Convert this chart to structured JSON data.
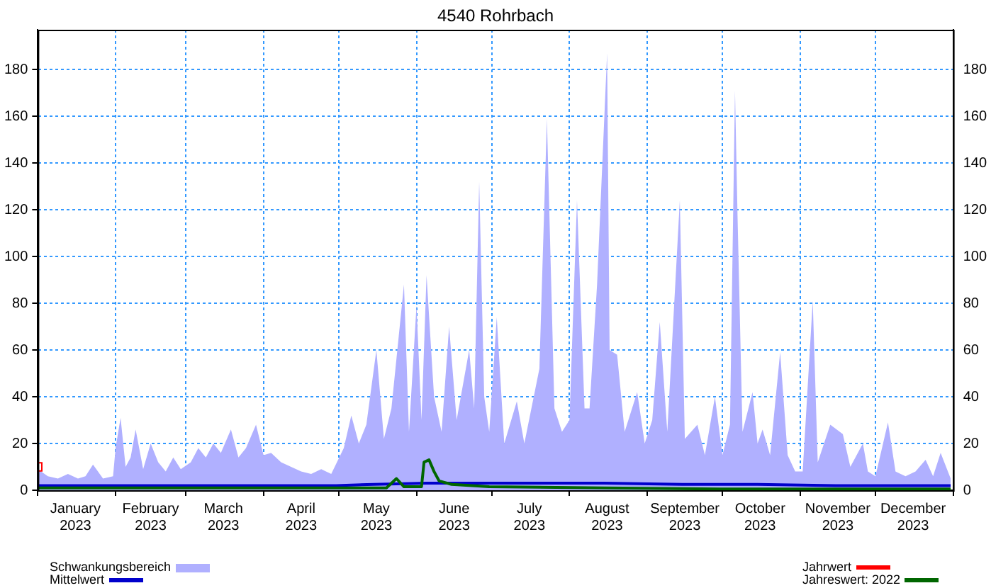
{
  "chart_data": {
    "type": "area",
    "title": "4540 Rohrbach",
    "xlim": [
      "2023-01-01",
      "2024-01-01"
    ],
    "xticks": [
      {
        "value": "2023-01-01",
        "label": null
      },
      {
        "value": "2023-01-16",
        "label": "January 2023"
      },
      {
        "value": "2023-02-01",
        "label": null
      },
      {
        "value": "2023-02-15",
        "label": "February 2023"
      },
      {
        "value": "2023-03-01",
        "label": null
      },
      {
        "value": "2023-03-16",
        "label": "March 2023"
      },
      {
        "value": "2023-04-01",
        "label": null
      },
      {
        "value": "2023-04-16",
        "label": "April 2023"
      },
      {
        "value": "2023-05-01",
        "label": null
      },
      {
        "value": "2023-05-16",
        "label": "May 2023"
      },
      {
        "value": "2023-06-01",
        "label": null
      },
      {
        "value": "2023-06-16",
        "label": "June 2023"
      },
      {
        "value": "2023-07-01",
        "label": null
      },
      {
        "value": "2023-07-16",
        "label": "July 2023"
      },
      {
        "value": "2023-08-01",
        "label": null
      },
      {
        "value": "2023-08-16",
        "label": "August 2023"
      },
      {
        "value": "2023-09-01",
        "label": null
      },
      {
        "value": "2023-09-16",
        "label": "September 2023"
      },
      {
        "value": "2023-10-01",
        "label": null
      },
      {
        "value": "2023-10-16",
        "label": "October 2023"
      },
      {
        "value": "2023-11-01",
        "label": null
      },
      {
        "value": "2023-11-16",
        "label": "November 2023"
      },
      {
        "value": "2023-12-01",
        "label": null
      },
      {
        "value": "2023-12-16",
        "label": "December 2023"
      },
      {
        "value": "2024-01-01",
        "label": null
      }
    ],
    "ylim": [
      0,
      197
    ],
    "yticks": [
      0,
      20,
      40,
      60,
      80,
      100,
      120,
      140,
      160,
      180
    ],
    "y2lim": [
      0,
      197
    ],
    "y2ticks": [
      0,
      20,
      40,
      60,
      80,
      100,
      120,
      140,
      160,
      180
    ],
    "grid": true,
    "legend": "bottom",
    "series": [
      {
        "name": "Schwankungsbereich",
        "color": "#b0b0ff",
        "x": [
          "2023-01-01",
          "2023-01-05",
          "2023-01-09",
          "2023-01-13",
          "2023-01-17",
          "2023-01-20",
          "2023-01-23",
          "2023-01-27",
          "2023-01-31",
          "2023-02-01",
          "2023-02-03",
          "2023-02-05",
          "2023-02-07",
          "2023-02-09",
          "2023-02-12",
          "2023-02-15",
          "2023-02-18",
          "2023-02-21",
          "2023-02-24",
          "2023-02-27",
          "2023-03-03",
          "2023-03-06",
          "2023-03-09",
          "2023-03-12",
          "2023-03-15",
          "2023-03-19",
          "2023-03-22",
          "2023-03-25",
          "2023-03-29",
          "2023-04-01",
          "2023-04-04",
          "2023-04-08",
          "2023-04-12",
          "2023-04-16",
          "2023-04-20",
          "2023-04-24",
          "2023-04-28",
          "2023-05-03",
          "2023-05-06",
          "2023-05-09",
          "2023-05-12",
          "2023-05-16",
          "2023-05-19",
          "2023-05-22",
          "2023-05-27",
          "2023-05-29",
          "2023-06-01",
          "2023-06-03",
          "2023-06-05",
          "2023-06-08",
          "2023-06-11",
          "2023-06-14",
          "2023-06-17",
          "2023-06-22",
          "2023-06-24",
          "2023-06-26",
          "2023-06-28",
          "2023-06-30",
          "2023-07-03",
          "2023-07-06",
          "2023-07-11",
          "2023-07-14",
          "2023-07-20",
          "2023-07-23",
          "2023-07-26",
          "2023-07-29",
          "2023-08-01",
          "2023-08-04",
          "2023-08-07",
          "2023-08-09",
          "2023-08-12",
          "2023-08-16",
          "2023-08-17",
          "2023-08-20",
          "2023-08-23",
          "2023-08-28",
          "2023-08-31",
          "2023-09-03",
          "2023-09-06",
          "2023-09-09",
          "2023-09-14",
          "2023-09-16",
          "2023-09-21",
          "2023-09-24",
          "2023-09-28",
          "2023-10-01",
          "2023-10-04",
          "2023-10-06",
          "2023-10-07",
          "2023-10-09",
          "2023-10-13",
          "2023-10-15",
          "2023-10-17",
          "2023-10-20",
          "2023-10-24",
          "2023-10-27",
          "2023-10-30",
          "2023-11-02",
          "2023-11-06",
          "2023-11-08",
          "2023-11-13",
          "2023-11-18",
          "2023-11-21",
          "2023-11-26",
          "2023-11-28",
          "2023-12-01",
          "2023-12-06",
          "2023-12-09",
          "2023-12-13",
          "2023-12-17",
          "2023-12-21",
          "2023-12-24",
          "2023-12-27",
          "2023-12-31"
        ],
        "values": [
          9,
          6,
          5,
          7,
          5,
          6,
          11,
          5,
          6,
          18,
          31,
          10,
          14,
          26,
          9,
          20,
          12,
          8,
          14,
          9,
          12,
          18,
          14,
          20,
          16,
          26,
          14,
          18,
          28,
          15,
          16,
          12,
          10,
          8,
          7,
          9,
          7,
          18,
          32,
          20,
          28,
          60,
          22,
          35,
          88,
          25,
          79,
          30,
          92,
          40,
          25,
          70,
          30,
          60,
          35,
          132,
          40,
          25,
          74,
          20,
          38,
          20,
          52,
          159,
          35,
          25,
          30,
          124,
          35,
          35,
          88,
          187,
          60,
          58,
          25,
          42,
          20,
          30,
          72,
          25,
          124,
          22,
          28,
          15,
          40,
          15,
          28,
          171,
          118,
          25,
          42,
          20,
          26,
          15,
          59,
          15,
          8,
          8,
          81,
          12,
          28,
          24,
          10,
          20,
          8,
          6,
          29,
          8,
          6,
          8,
          13,
          6,
          16,
          5
        ]
      },
      {
        "name": "Mittelwert",
        "type": "line",
        "color": "#0000cc",
        "x": [
          "2023-01-01",
          "2023-02-01",
          "2023-04-30",
          "2023-05-15",
          "2023-06-05",
          "2023-07-15",
          "2023-08-15",
          "2023-09-15",
          "2023-10-15",
          "2023-11-15",
          "2023-12-31"
        ],
        "values": [
          2,
          2,
          2,
          2.5,
          3,
          3,
          3,
          2.5,
          2.5,
          2,
          2
        ]
      },
      {
        "name": "Jahrwert",
        "type": "scatter",
        "marker": "square",
        "color": "#ff0000",
        "x": [
          "2023-01-01"
        ],
        "values": [
          10
        ]
      },
      {
        "name": "Jahreswert: 2022",
        "type": "line",
        "color": "#006600",
        "x": [
          "2023-01-01",
          "2023-05-20",
          "2023-05-24",
          "2023-05-27",
          "2023-06-03",
          "2023-06-04",
          "2023-06-06",
          "2023-06-08",
          "2023-06-10",
          "2023-06-15",
          "2023-06-30",
          "2023-08-15",
          "2023-09-30",
          "2023-12-31"
        ],
        "values": [
          1,
          1,
          5,
          1.5,
          1.5,
          12,
          13,
          8,
          4,
          2.5,
          1.5,
          1,
          0.5,
          0.5
        ]
      }
    ]
  }
}
